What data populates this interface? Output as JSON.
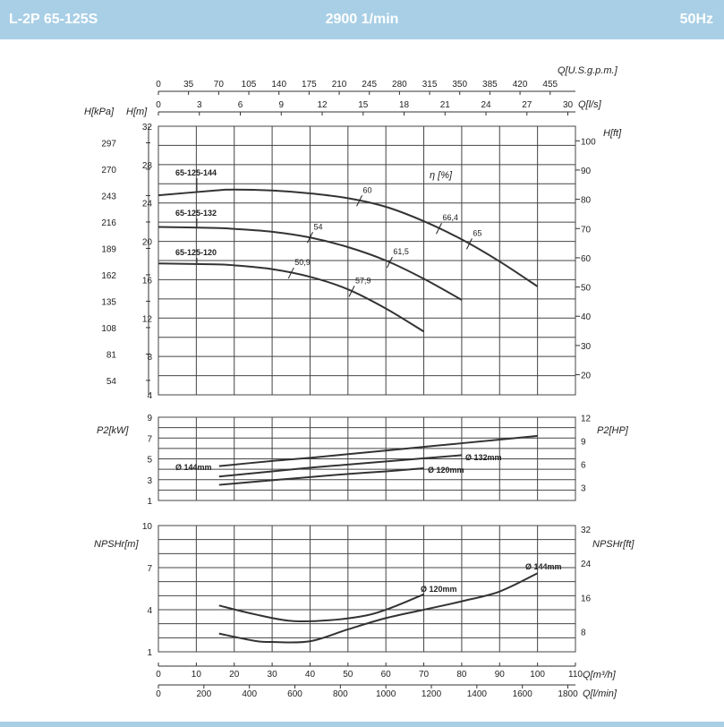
{
  "header": {
    "model": "L-2P 65-125S",
    "speed": "2900 1/min",
    "frequency": "50Hz"
  },
  "chart_data": {
    "type": "line",
    "top_axes": [
      {
        "label": "Q[U.S.g.p.m.]",
        "ticks": [
          "0",
          "35",
          "70",
          "105",
          "140",
          "175",
          "210",
          "245",
          "280",
          "315",
          "350",
          "385",
          "420",
          "455"
        ]
      },
      {
        "label": "Q[l/s]",
        "ticks": [
          "0",
          "3",
          "6",
          "9",
          "12",
          "15",
          "18",
          "21",
          "24",
          "27",
          "30"
        ]
      }
    ],
    "bottom_axes": [
      {
        "label": "Q[m³/h]",
        "ticks": [
          "0",
          "10",
          "20",
          "30",
          "40",
          "50",
          "60",
          "70",
          "80",
          "90",
          "100",
          "110"
        ]
      },
      {
        "label": "Q[l/min]",
        "ticks": [
          "0",
          "200",
          "400",
          "600",
          "800",
          "1000",
          "1200",
          "1400",
          "1600",
          "1800"
        ]
      }
    ],
    "panels": {
      "head": {
        "ylabel_m": "H[m]",
        "ylabel_kpa": "H[kPa]",
        "ylabel_ft": "H[ft]",
        "ylim": [
          4,
          32
        ],
        "m_ticks": [
          "4",
          "8",
          "12",
          "16",
          "20",
          "24",
          "28",
          "32"
        ],
        "kpa_ticks": [
          "54",
          "81",
          "108",
          "135",
          "162",
          "189",
          "216",
          "243",
          "270",
          "297"
        ],
        "ft_ticks": [
          "20",
          "30",
          "40",
          "50",
          "60",
          "70",
          "80",
          "90",
          "100"
        ],
        "efficiency_label": "η [%]",
        "series": [
          {
            "name": "65-125-144",
            "x": [
              0,
              15,
              20,
              30,
              40,
              50,
              60,
              70,
              80,
              90,
              100
            ],
            "y": [
              24.8,
              25.3,
              25.4,
              25.3,
              25.0,
              24.5,
              23.6,
              22.1,
              20.2,
              17.9,
              15.3
            ]
          },
          {
            "name": "65-125-132",
            "x": [
              0,
              15,
              20,
              30,
              40,
              50,
              60,
              70,
              80
            ],
            "y": [
              21.5,
              21.4,
              21.3,
              21.0,
              20.4,
              19.4,
              18.0,
              16.1,
              13.9
            ]
          },
          {
            "name": "65-125-120",
            "x": [
              0,
              15,
              20,
              30,
              40,
              50,
              60,
              70
            ],
            "y": [
              17.7,
              17.6,
              17.5,
              17.1,
              16.3,
              15.0,
              13.0,
              10.6
            ]
          }
        ],
        "efficiency_marks": [
          {
            "label": "60",
            "x": 53,
            "series": 0
          },
          {
            "label": "66,4",
            "x": 74,
            "series": 0
          },
          {
            "label": "65",
            "x": 82,
            "series": 0
          },
          {
            "label": "54",
            "x": 40,
            "series": 1
          },
          {
            "label": "61,5",
            "x": 61,
            "series": 1
          },
          {
            "label": "50,9",
            "x": 35,
            "series": 2
          },
          {
            "label": "57,9",
            "x": 51,
            "series": 2
          }
        ]
      },
      "power": {
        "ylabel_kw": "P2[kW]",
        "ylabel_hp": "P2[HP]",
        "ylim": [
          1,
          9
        ],
        "kw_ticks": [
          "1",
          "3",
          "5",
          "7",
          "9"
        ],
        "hp_ticks": [
          "3",
          "6",
          "9",
          "12"
        ],
        "series": [
          {
            "name": "Ø 144mm",
            "x": [
              16,
              30,
              40,
              50,
              60,
              70,
              80,
              90,
              100
            ],
            "y": [
              4.3,
              4.8,
              5.1,
              5.45,
              5.8,
              6.15,
              6.5,
              6.85,
              7.2
            ]
          },
          {
            "name": "Ø 132mm",
            "x": [
              16,
              30,
              40,
              50,
              60,
              70,
              80
            ],
            "y": [
              3.3,
              3.8,
              4.15,
              4.45,
              4.75,
              5.05,
              5.35
            ]
          },
          {
            "name": "Ø 120mm",
            "x": [
              16,
              30,
              40,
              50,
              60,
              70
            ],
            "y": [
              2.5,
              2.95,
              3.25,
              3.55,
              3.8,
              4.1
            ]
          }
        ]
      },
      "npsh": {
        "ylabel_m": "NPSHr[m]",
        "ylabel_ft": "NPSHr[ft]",
        "ylim": [
          1,
          10
        ],
        "m_ticks": [
          "1",
          "4",
          "7",
          "10"
        ],
        "ft_ticks": [
          "8",
          "16",
          "24",
          "32"
        ],
        "series": [
          {
            "name": "Ø 144mm",
            "x": [
              16,
              25,
              30,
              40,
              50,
              60,
              70,
              80,
              90,
              100
            ],
            "y": [
              2.3,
              1.8,
              1.7,
              1.75,
              2.6,
              3.4,
              4.0,
              4.6,
              5.3,
              6.6
            ]
          },
          {
            "name": "Ø 120mm",
            "x": [
              16,
              25,
              35,
              45,
              55,
              62,
              70
            ],
            "y": [
              4.3,
              3.7,
              3.2,
              3.25,
              3.6,
              4.2,
              5.1
            ]
          }
        ]
      }
    }
  }
}
